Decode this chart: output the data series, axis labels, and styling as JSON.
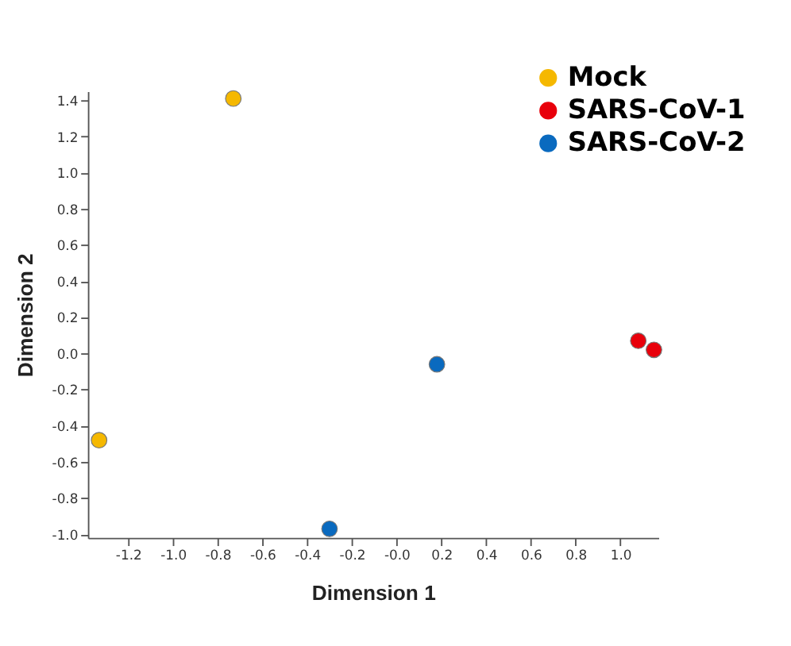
{
  "chart_data": {
    "type": "scatter",
    "xlabel": "Dimension 1",
    "ylabel": "Dimension 2",
    "xlim": [
      -1.38,
      1.17
    ],
    "ylim": [
      -1.02,
      1.45
    ],
    "xticks": [
      -1.2,
      {
        "value": -1,
        "label": "-1.0"
      },
      -0.8,
      -0.6,
      -0.4,
      -0.2,
      {
        "value": 0,
        "label": "-0.0"
      },
      0.2,
      0.4,
      0.6,
      0.8,
      {
        "value": 1,
        "label": "1.0"
      }
    ],
    "yticks": [
      {
        "value": -1,
        "label": "-1.0"
      },
      -0.8,
      -0.6,
      -0.4,
      -0.2,
      {
        "value": 0,
        "label": "0.0"
      },
      0.2,
      0.4,
      0.6,
      0.8,
      {
        "value": 1,
        "label": "1.0"
      },
      1.2,
      1.4
    ],
    "grid": false,
    "legend": "top right",
    "marker": "circle",
    "series": [
      {
        "name": "Mock",
        "color": "#f5b800",
        "x": [
          -1.33,
          -0.73
        ],
        "values": [
          -0.48,
          1.41
        ]
      },
      {
        "name": "SARS-CoV-1",
        "color": "#e8000b",
        "x": [
          1.08,
          1.15
        ],
        "values": [
          0.07,
          0.02
        ]
      },
      {
        "name": "SARS-CoV-2",
        "color": "#0a6abf",
        "x": [
          0.18,
          -0.3
        ],
        "values": [
          -0.06,
          -0.97
        ]
      }
    ]
  }
}
